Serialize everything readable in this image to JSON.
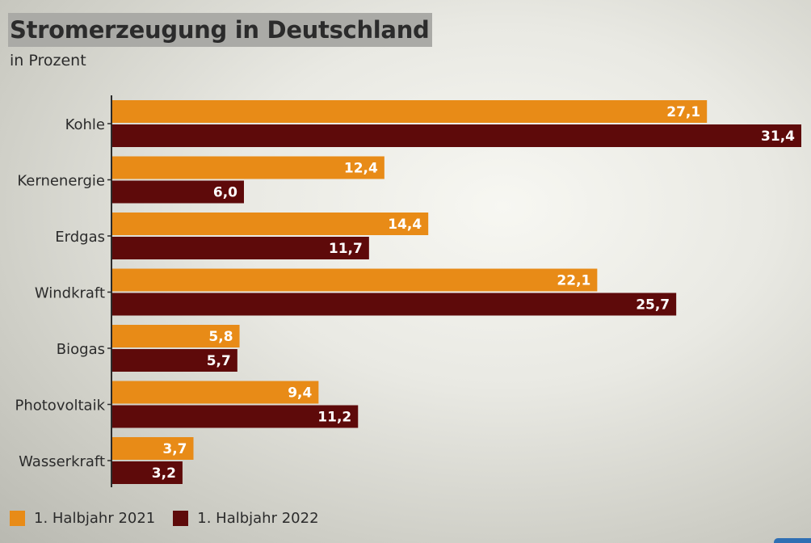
{
  "colors": {
    "series_2021": "#e88b17",
    "series_2022": "#5e0a0a",
    "value_label": "#ffffff",
    "axis": "#2b2b2b",
    "title_bg": "#aaaaa6"
  },
  "chart_data": {
    "type": "bar",
    "orientation": "horizontal",
    "title": "Stromerzeugung in Deutschland",
    "subtitle": "in Prozent",
    "categories": [
      "Kohle",
      "Kernenergie",
      "Erdgas",
      "Windkraft",
      "Biogas",
      "Photovoltaik",
      "Wasserkraft"
    ],
    "series": [
      {
        "name": "1. Halbjahr 2021",
        "values": [
          27.1,
          12.4,
          14.4,
          22.1,
          5.8,
          9.4,
          3.7
        ],
        "labels": [
          "27,1",
          "12,4",
          "14,4",
          "22,1",
          "5,8",
          "9,4",
          "3,7"
        ]
      },
      {
        "name": "1. Halbjahr 2022",
        "values": [
          31.4,
          6.0,
          11.7,
          25.7,
          5.7,
          11.2,
          3.2
        ],
        "labels": [
          "31,4",
          "6,0",
          "11,7",
          "25,7",
          "5,7",
          "11,2",
          "3,2"
        ]
      }
    ],
    "xlim": [
      0,
      31.4
    ],
    "grid": false,
    "legend_position": "bottom-left"
  }
}
